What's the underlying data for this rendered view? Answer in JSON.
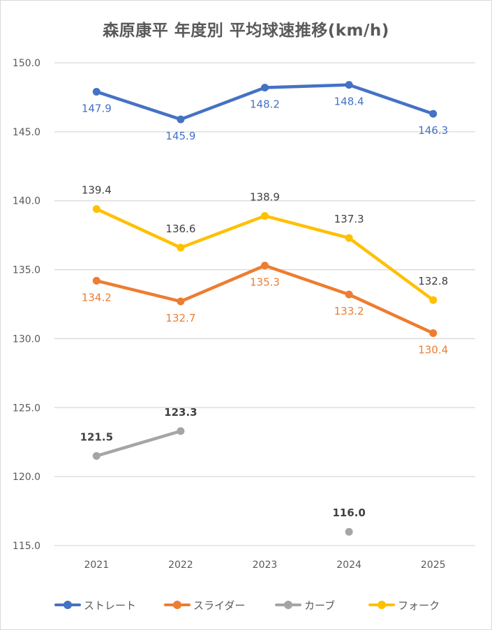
{
  "chart_data": {
    "type": "line",
    "title": "森原康平 年度別 平均球速推移(km/h)",
    "xlabel": "",
    "ylabel": "",
    "categories": [
      "2021",
      "2022",
      "2023",
      "2024",
      "2025"
    ],
    "ylim": [
      115.0,
      150.0
    ],
    "yticks": [
      "115.0",
      "120.0",
      "125.0",
      "130.0",
      "135.0",
      "140.0",
      "145.0",
      "150.0"
    ],
    "ytick_values": [
      115,
      120,
      125,
      130,
      135,
      140,
      145,
      150
    ],
    "grid": true,
    "legend_position": "bottom",
    "series": [
      {
        "name": "ストレート",
        "color": "#4472C4",
        "label_color": "#4472C4",
        "label_pos": "below",
        "label_bold": false,
        "values": [
          147.9,
          145.9,
          148.2,
          148.4,
          146.3
        ],
        "labels": [
          "147.9",
          "145.9",
          "148.2",
          "148.4",
          "146.3"
        ]
      },
      {
        "name": "スライダー",
        "color": "#ED7D31",
        "label_color": "#ED7D31",
        "label_pos": "below",
        "label_bold": false,
        "values": [
          134.2,
          132.7,
          135.3,
          133.2,
          130.4
        ],
        "labels": [
          "134.2",
          "132.7",
          "135.3",
          "133.2",
          "130.4"
        ]
      },
      {
        "name": "カーブ",
        "color": "#A5A5A5",
        "label_color": "#404040",
        "label_pos": "above",
        "label_bold": true,
        "values": [
          121.5,
          123.3,
          null,
          116.0,
          null
        ],
        "labels": [
          "121.5",
          "123.3",
          "",
          "116.0",
          ""
        ]
      },
      {
        "name": "フォーク",
        "color": "#FFC000",
        "label_color": "#404040",
        "label_pos": "above",
        "label_bold": false,
        "values": [
          139.4,
          136.6,
          138.9,
          137.3,
          132.8
        ],
        "labels": [
          "139.4",
          "136.6",
          "138.9",
          "137.3",
          "132.8"
        ]
      }
    ]
  }
}
